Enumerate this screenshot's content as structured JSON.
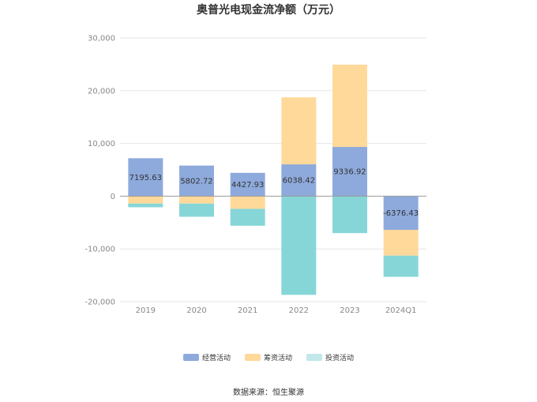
{
  "title": "奥普光电现金流净额（万元）",
  "source": "数据来源：恒生聚源",
  "colors": {
    "operating": "#8eaadc",
    "financing": "#ffd99a",
    "investing": "#86d6d8",
    "grid": "#e6e6e6",
    "axis": "#999999",
    "tick_text": "#888888"
  },
  "chart_data": {
    "type": "bar",
    "stacked": true,
    "title": "奥普光电现金流净额（万元）",
    "categories": [
      "2019",
      "2020",
      "2021",
      "2022",
      "2023",
      "2024Q1"
    ],
    "yticks": [
      "30,000",
      "20,000",
      "10,000",
      "0",
      "-10,000",
      "-20,000"
    ],
    "ylim": [
      -20000,
      30000
    ],
    "grid": true,
    "legend_position": "bottom",
    "series": [
      {
        "name": "经营活动",
        "values": [
          7195.63,
          5802.72,
          4427.93,
          6038.42,
          9336.92,
          -6376.43
        ]
      },
      {
        "name": "筹资活动",
        "values": [
          -1400,
          -1400,
          -2400,
          12700,
          15600,
          -4900
        ]
      },
      {
        "name": "投资活动",
        "values": [
          -700,
          -2500,
          -3200,
          -18700,
          -7000,
          -4000
        ]
      }
    ],
    "data_labels": [
      "7195.63",
      "5802.72",
      "4427.93",
      "6038.42",
      "9336.92",
      "-6376.43"
    ]
  },
  "legend": [
    {
      "label": "经营活动",
      "color": "#8eaadc"
    },
    {
      "label": "筹资活动",
      "color": "#ffd99a"
    },
    {
      "label": "投资活动",
      "color": "#c3e8ea"
    }
  ]
}
